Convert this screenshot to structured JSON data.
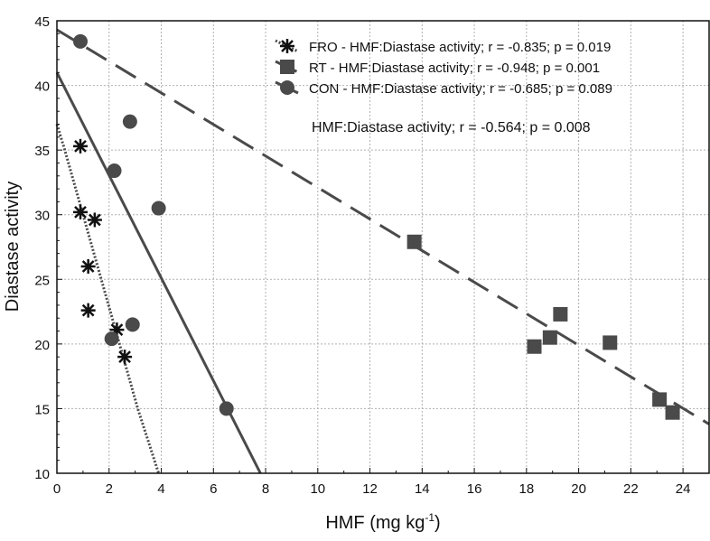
{
  "chart_data": {
    "type": "scatter",
    "xlabel": "HMF (mg kg",
    "xlabel_sup": "-1",
    "xlabel_close": ")",
    "ylabel": "Diastase activity",
    "xlim": [
      0,
      25
    ],
    "ylim": [
      10,
      45
    ],
    "xticks": [
      0,
      2,
      4,
      6,
      8,
      10,
      12,
      14,
      16,
      18,
      20,
      22,
      24
    ],
    "yticks": [
      10,
      15,
      20,
      25,
      30,
      35,
      40,
      45
    ],
    "grid": true,
    "legend_position": "top-right",
    "series": [
      {
        "name": "FRO - HMF:Diastase activity; r = -0.835; p = 0.019",
        "marker": "asterisk",
        "line": "dotted",
        "points": [
          [
            0.9,
            35.3
          ],
          [
            0.9,
            30.2
          ],
          [
            1.45,
            29.6
          ],
          [
            1.2,
            26.0
          ],
          [
            1.2,
            22.6
          ],
          [
            2.3,
            21.1
          ],
          [
            2.6,
            19.0
          ]
        ],
        "fit": [
          [
            0,
            37
          ],
          [
            0.3,
            35
          ],
          [
            1.0,
            30
          ],
          [
            1.7,
            25
          ],
          [
            2.4,
            20
          ],
          [
            3.1,
            15
          ],
          [
            3.9,
            10
          ]
        ]
      },
      {
        "name": "RT    - HMF:Diastase activity; r = -0.948; p = 0.001",
        "marker": "square",
        "line": "dashed",
        "points": [
          [
            13.7,
            27.9
          ],
          [
            18.3,
            19.8
          ],
          [
            18.9,
            20.5
          ],
          [
            19.3,
            22.3
          ],
          [
            21.2,
            20.1
          ],
          [
            23.1,
            15.7
          ],
          [
            23.6,
            14.7
          ]
        ],
        "fit": [
          [
            0,
            44.3
          ],
          [
            25,
            13.8
          ]
        ]
      },
      {
        "name": "CON - HMF:Diastase activity; r = -0.685; p = 0.089",
        "marker": "circle",
        "line": "solid",
        "points": [
          [
            0.9,
            43.4
          ],
          [
            2.8,
            37.2
          ],
          [
            2.2,
            33.4
          ],
          [
            3.9,
            30.5
          ],
          [
            2.9,
            21.5
          ],
          [
            2.1,
            20.4
          ],
          [
            6.5,
            15.0
          ]
        ],
        "fit": [
          [
            0,
            41
          ],
          [
            7.8,
            10
          ]
        ]
      }
    ],
    "annotation": "HMF:Diastase activity; r = -0.564; p = 0.008",
    "colors": {
      "marker": "#4a4a4a",
      "line": "#4a4a4a",
      "grid": "#b0b0b0"
    }
  }
}
